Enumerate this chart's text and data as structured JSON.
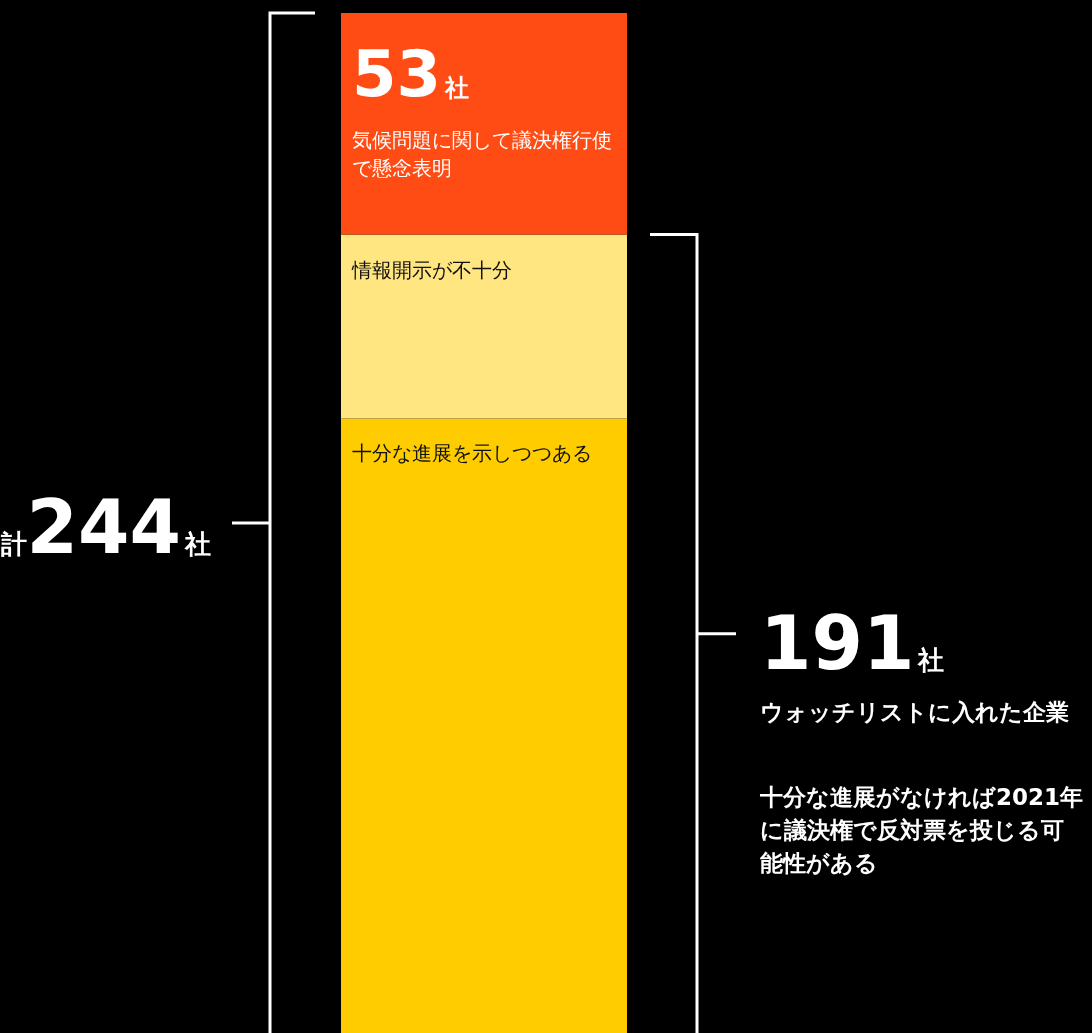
{
  "chart_data": {
    "type": "bar",
    "stacked": true,
    "categories": [
      null
    ],
    "series": [
      {
        "name": "十分な進展を示しつつある",
        "color": "#ffcc00",
        "values": [
          147
        ]
      },
      {
        "name": "情報開示が不十分",
        "color": "#ffe680",
        "values": [
          44
        ]
      },
      {
        "name": "気候問題に関して議決権行使で懸念表明",
        "color": "#ff4b14",
        "values": [
          53
        ],
        "value_labels": [
          "53社"
        ]
      }
    ],
    "annotations": [
      "計244社",
      "191社",
      "ウォッチリストに入れた企業",
      "十分な進展がなければ2021年に議決権で反対票を投じる可能性がある"
    ]
  }
}
